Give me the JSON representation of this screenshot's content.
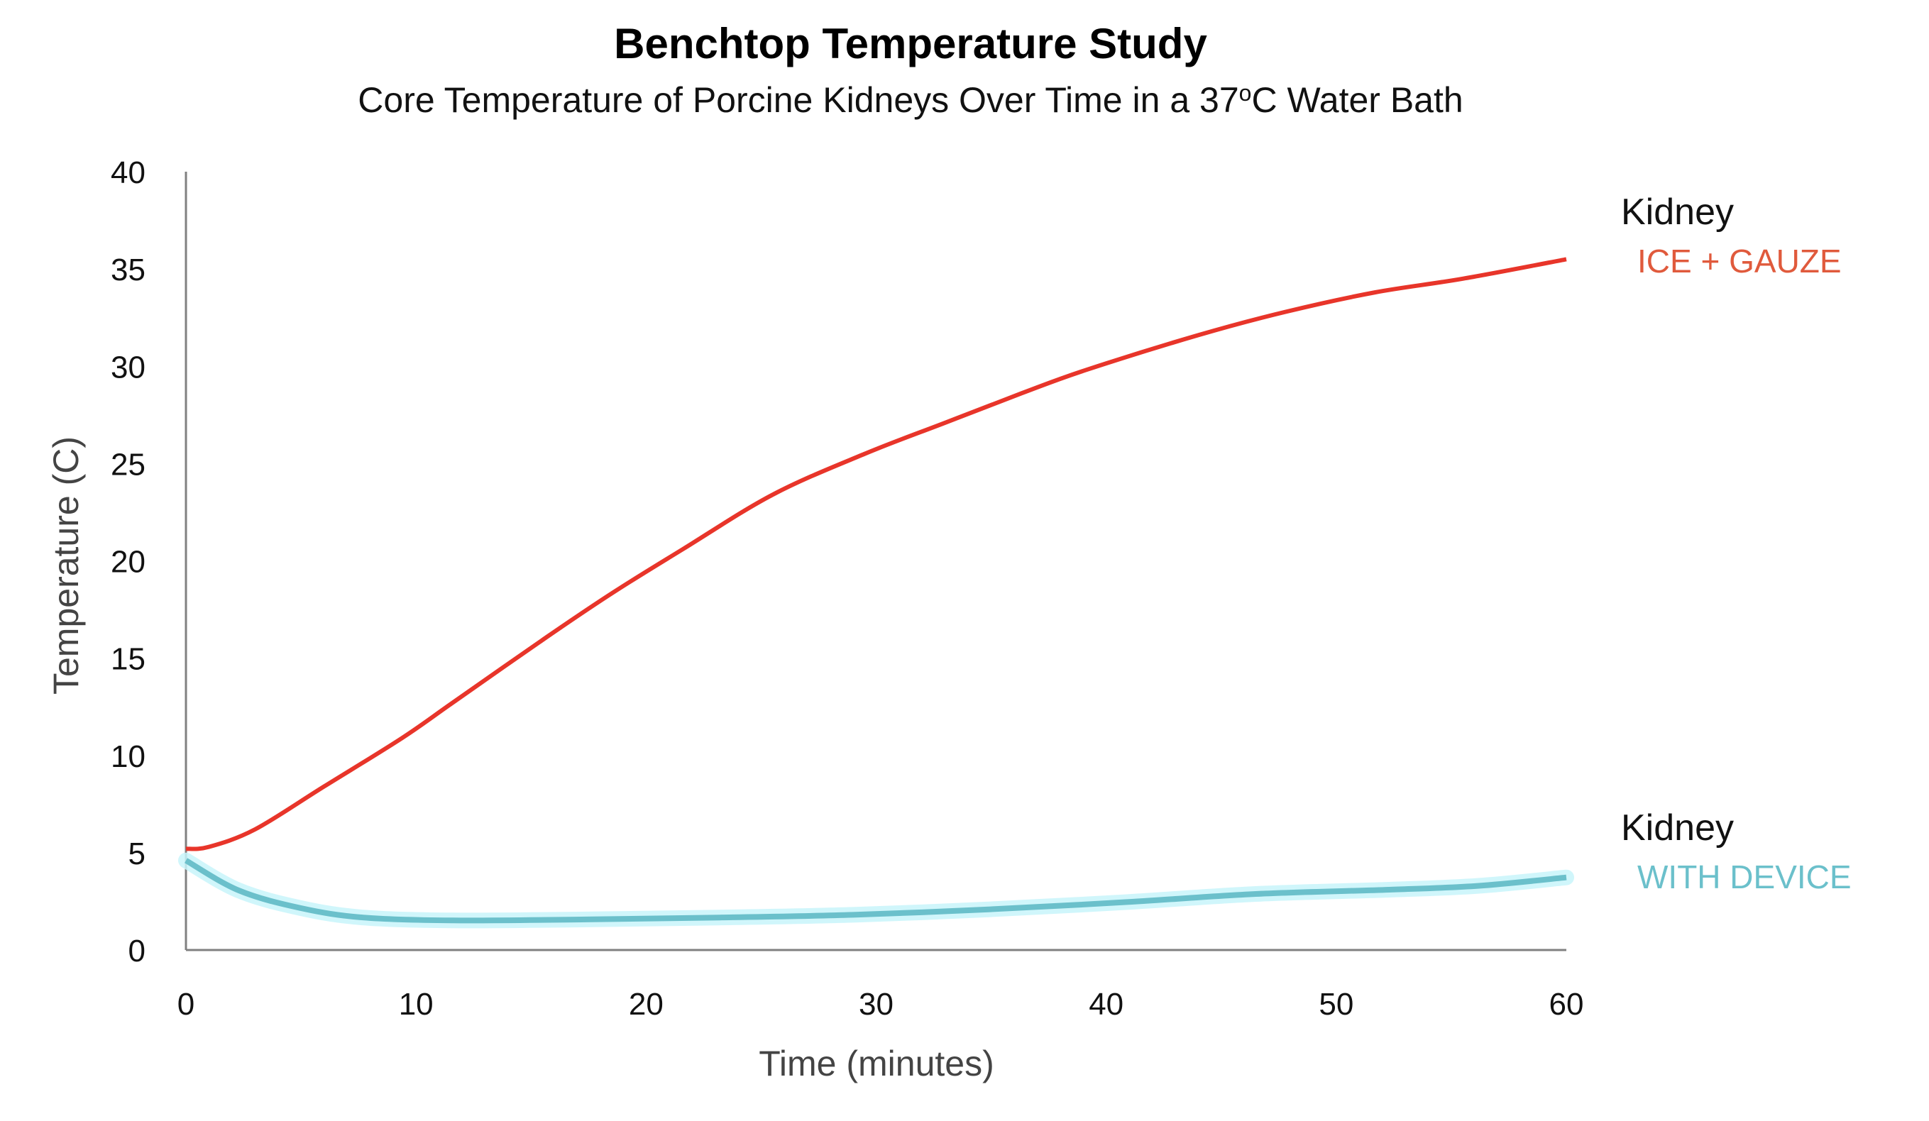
{
  "chart_data": {
    "type": "line",
    "title": "Benchtop Temperature Study",
    "subtitle": {
      "before": "Core Temperature of Porcine Kidneys Over Time in a 37",
      "superscript": "o",
      "after": "C Water Bath"
    },
    "xlabel": "Time (minutes)",
    "ylabel": "Temperature (C)",
    "xlim": [
      0,
      60
    ],
    "ylim": [
      0,
      40
    ],
    "xticks": [
      "0",
      "10",
      "20",
      "30",
      "40",
      "50",
      "60"
    ],
    "yticks": [
      "0",
      "5",
      "10",
      "15",
      "20",
      "25",
      "30",
      "35",
      "40"
    ],
    "grid": false,
    "legend_placement": "right, inline at line ends",
    "series": [
      {
        "name": "Kidney ICE + GAUZE",
        "label_main": "Kidney",
        "label_sub": "ICE + GAUZE",
        "color": "#e8352a",
        "label_color": "#e05a3c",
        "x": [
          0,
          1,
          3,
          6,
          9.4,
          11.7,
          15.7,
          18.6,
          21.6,
          25.5,
          29.5,
          33,
          36.3,
          39.1,
          44,
          47.8,
          51.7,
          55.5,
          60
        ],
        "y": [
          5.2,
          5.3,
          6.2,
          8.4,
          10.9,
          12.8,
          16.1,
          18.4,
          20.6,
          23.4,
          25.5,
          27.1,
          28.6,
          29.8,
          31.6,
          32.8,
          33.8,
          34.5,
          35.5
        ]
      },
      {
        "name": "Kidney WITH DEVICE",
        "label_main": "Kidney",
        "label_sub": "WITH DEVICE",
        "color": "#6bc0cb",
        "glow_color": "#c8f4fa",
        "label_color": "#6bc0cb",
        "x": [
          0,
          2.3,
          5,
          7.7,
          11.6,
          17.4,
          23.2,
          29,
          34.9,
          40.7,
          46.5,
          52.3,
          56.2,
          60
        ],
        "y": [
          4.6,
          3.06,
          2.15,
          1.67,
          1.52,
          1.57,
          1.67,
          1.81,
          2.09,
          2.45,
          2.88,
          3.1,
          3.3,
          3.73
        ]
      }
    ]
  }
}
